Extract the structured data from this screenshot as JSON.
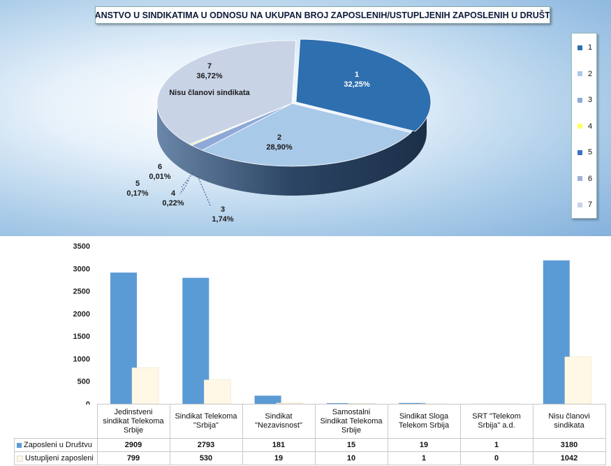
{
  "title": "ČLANSTVO U SINDIKATIMA U ODNOSU NA UKUPAN BROJ ZAPOSLENIH/USTUPLJENIH ZAPOSLENIH U DRUŠTVU",
  "legend": {
    "items": [
      "1",
      "2",
      "3",
      "4",
      "5",
      "6",
      "7"
    ],
    "colors": [
      "#2e6faf",
      "#a9c9e8",
      "#8ea9d8",
      "#ffff66",
      "#3a72c0",
      "#9fb0d8",
      "#c8d3e6"
    ]
  },
  "chart_data": [
    {
      "type": "pie",
      "title": "ČLANSTVO U SINDIKATIMA U ODNOSU NA UKUPAN BROJ ZAPOSLENIH/USTUPLJENIH ZAPOSLENIH U DRUŠTVU",
      "slices": [
        {
          "label": "1",
          "value_text": "32,25%",
          "value": 32.25,
          "color": "#2e6faf"
        },
        {
          "label": "2",
          "value_text": "28,90%",
          "value": 28.9,
          "color": "#a9c9e8"
        },
        {
          "label": "3",
          "value_text": "1,74%",
          "value": 1.74,
          "color": "#8ea9d8"
        },
        {
          "label": "4",
          "value_text": "0,22%",
          "value": 0.22,
          "color": "#ffff66"
        },
        {
          "label": "5",
          "value_text": "0,17%",
          "value": 0.17,
          "color": "#3a72c0"
        },
        {
          "label": "6",
          "value_text": "0,01%",
          "value": 0.01,
          "color": "#9fb0d8"
        },
        {
          "label": "7",
          "value_text": "36,72%",
          "value": 36.72,
          "color": "#c8d3e6",
          "extra": "Nisu članovi sindikata"
        }
      ],
      "legend_position": "right"
    },
    {
      "type": "bar",
      "categories": [
        "Jedinstveni sindikat Telekoma Srbije",
        "Sindikat Telekoma \"Srbija\"",
        "Sindikat \"Nezavisnost\"",
        "Samostalni Sindikat Telekoma Srbije",
        "Sindikat Sloga Telekom Srbija",
        "SRT \"Telekom Srbija\" a.d.",
        "Nisu članovi sindikata"
      ],
      "category_lines": [
        [
          "Jedinstveni",
          "sindikat Telekoma",
          "Srbije"
        ],
        [
          "Sindikat Telekoma",
          "\"Srbija\""
        ],
        [
          "Sindikat",
          "\"Nezavisnost\""
        ],
        [
          "Samostalni",
          "Sindikat Telekoma",
          "Srbije"
        ],
        [
          "Sindikat Sloga",
          "Telekom Srbija"
        ],
        [
          "SRT \"Telekom",
          "Srbija\" a.d."
        ],
        [
          "Nisu članovi",
          "sindikata"
        ]
      ],
      "series": [
        {
          "name": "Zaposleni u Društvu",
          "values": [
            2909,
            2793,
            181,
            15,
            19,
            1,
            3180
          ],
          "color": "#5b9bd5"
        },
        {
          "name": "Ustupljeni zaposleni",
          "values": [
            799,
            530,
            19,
            10,
            1,
            0,
            1042
          ],
          "color": "#fff8e6"
        }
      ],
      "ylim": [
        0,
        3500
      ],
      "yticks": [
        0,
        500,
        1000,
        1500,
        2000,
        2500,
        3000,
        3500
      ],
      "grid": false,
      "legend_position": "table"
    }
  ]
}
